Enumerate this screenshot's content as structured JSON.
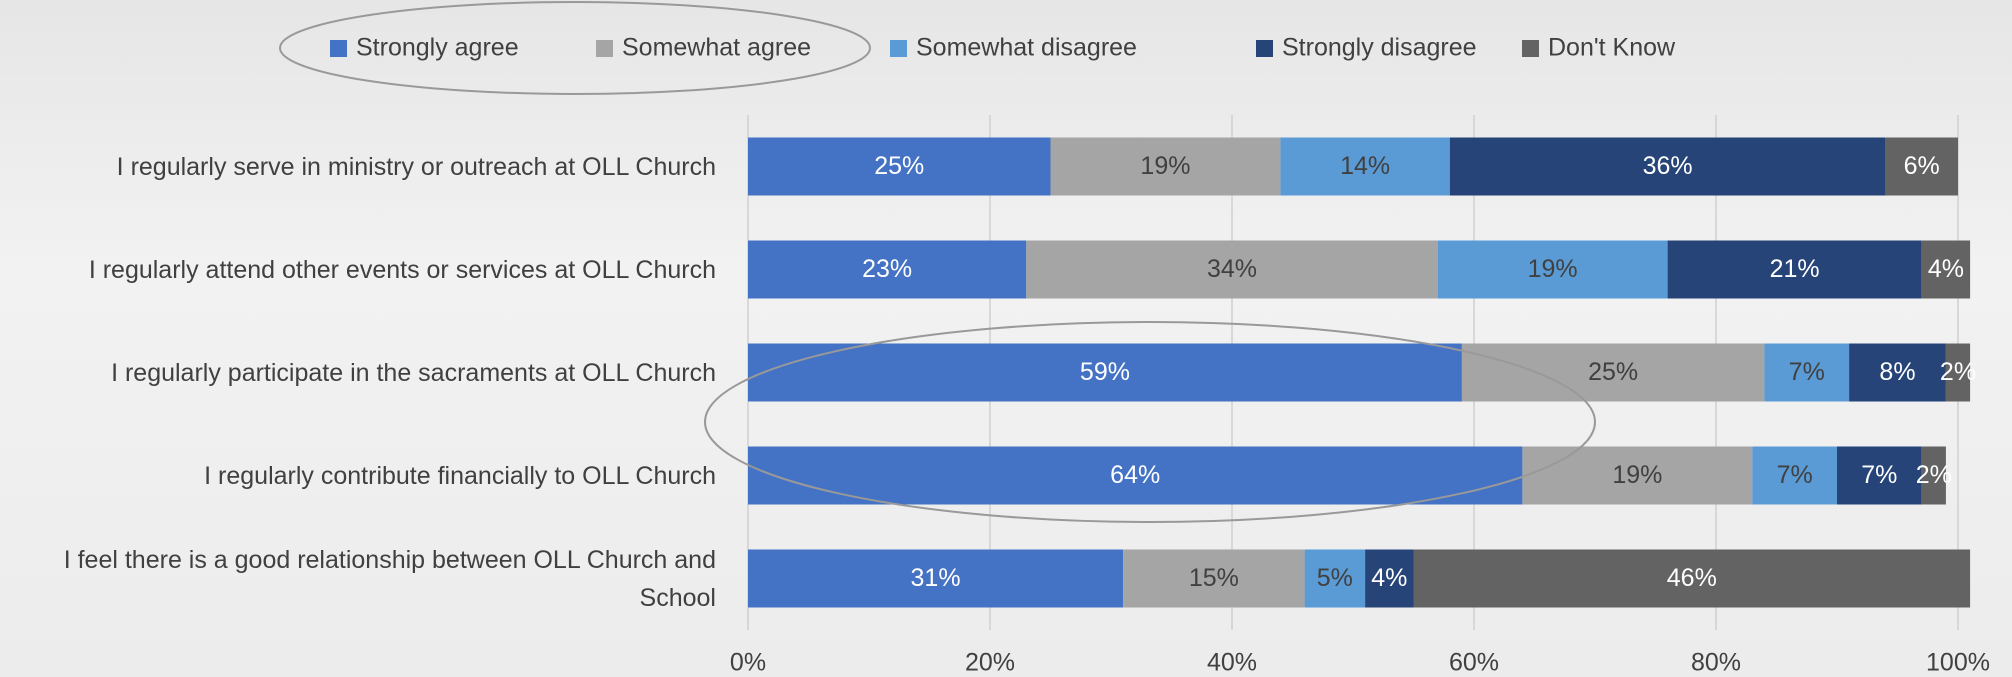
{
  "chart_data": {
    "type": "stacked-bar-horizontal",
    "categories": [
      "I regularly serve in ministry or outreach at OLL Church",
      "I regularly attend other events or services at OLL Church",
      "I regularly participate in the sacraments at OLL Church",
      "I regularly contribute financially to OLL Church",
      "I feel there is a good relationship between OLL Church and School"
    ],
    "series": [
      {
        "name": "Strongly agree",
        "color": "#4472c4",
        "label_color": "#ffffff",
        "values": [
          25,
          23,
          59,
          64,
          31
        ],
        "value_labels": [
          "25%",
          "23%",
          "59%",
          "64%",
          "31%"
        ]
      },
      {
        "name": "Somewhat agree",
        "color": "#a5a5a5",
        "label_color": "#404040",
        "values": [
          19,
          34,
          25,
          19,
          15
        ],
        "value_labels": [
          "19%",
          "34%",
          "25%",
          "19%",
          "15%"
        ]
      },
      {
        "name": "Somewhat disagree",
        "color": "#5b9bd5",
        "label_color": "#404040",
        "values": [
          14,
          19,
          7,
          7,
          5
        ],
        "value_labels": [
          "14%",
          "19%",
          "7%",
          "7%",
          "5%"
        ]
      },
      {
        "name": "Strongly disagree",
        "color": "#264478",
        "label_color": "#ffffff",
        "values": [
          36,
          21,
          8,
          7,
          4
        ],
        "value_labels": [
          "36%",
          "21%",
          "8%",
          "7%",
          "4%"
        ]
      },
      {
        "name": "Don't Know",
        "color": "#636363",
        "label_color": "#ffffff",
        "values": [
          6,
          4,
          2,
          2,
          46
        ],
        "value_labels": [
          "6%",
          "4%",
          "2%",
          "2%",
          "46%"
        ]
      }
    ],
    "xlim": [
      0,
      100
    ],
    "xticks": [
      {
        "value": 0,
        "label": "0%"
      },
      {
        "value": 20,
        "label": "20%"
      },
      {
        "value": 40,
        "label": "40%"
      },
      {
        "value": 60,
        "label": "60%"
      },
      {
        "value": 80,
        "label": "80%"
      },
      {
        "value": 100,
        "label": "100%"
      }
    ],
    "grid": true,
    "legend": "top"
  }
}
